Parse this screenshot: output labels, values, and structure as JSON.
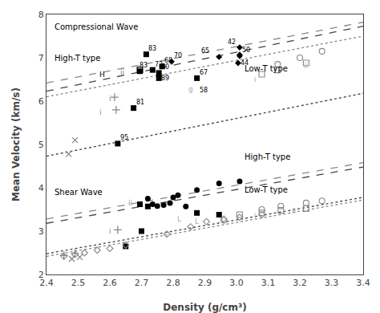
{
  "chart_data": {
    "type": "scatter",
    "xlabel": "Density (g/cm³)",
    "ylabel": "Mean Velocity (km/s)",
    "xlim": [
      2.4,
      3.4
    ],
    "ylim": [
      2.0,
      8.0
    ],
    "xticks": [
      2.4,
      2.5,
      2.6,
      2.7,
      2.8,
      2.9,
      {
        "value": 3.0,
        "label": "3.0"
      },
      3.1,
      3.2,
      3.3,
      3.4
    ],
    "yticks": [
      2,
      3,
      4,
      5,
      6,
      7,
      8
    ],
    "grid": false,
    "series": [
      {
        "type": "line",
        "color": "#444444",
        "line_style": "dashed",
        "x": [
          2.4,
          3.4
        ],
        "y": [
          6.23,
          7.73
        ]
      },
      {
        "type": "line",
        "color": "#444444",
        "line_style": "dotted",
        "x": [
          2.4,
          3.4
        ],
        "y": [
          4.73,
          6.18
        ]
      },
      {
        "type": "line",
        "color": "#888888",
        "line_style": "dashed",
        "x": [
          2.4,
          3.4
        ],
        "y": [
          6.42,
          7.82
        ]
      },
      {
        "type": "line",
        "color": "#888888",
        "line_style": "dotted",
        "x": [
          2.4,
          3.4
        ],
        "y": [
          6.1,
          7.5
        ]
      },
      {
        "type": "line",
        "color": "#444444",
        "line_style": "dashed",
        "x": [
          2.4,
          3.4
        ],
        "y": [
          3.18,
          4.48
        ]
      },
      {
        "type": "line",
        "color": "#444444",
        "line_style": "dotted",
        "x": [
          2.4,
          3.4
        ],
        "y": [
          2.48,
          3.78
        ]
      },
      {
        "type": "line",
        "color": "#888888",
        "line_style": "dashed",
        "x": [
          2.4,
          3.4
        ],
        "y": [
          3.28,
          4.58
        ]
      },
      {
        "type": "line",
        "color": "#888888",
        "line_style": "dotted",
        "x": [
          2.4,
          3.4
        ],
        "y": [
          2.42,
          3.72
        ]
      },
      {
        "type": "scatter",
        "marker": "square",
        "color": "black",
        "x": [
          2.715,
          2.735,
          2.755,
          2.755,
          2.675,
          2.625,
          2.875
        ],
        "y": [
          7.08,
          6.72,
          6.65,
          6.53,
          5.84,
          5.02,
          6.53
        ]
      },
      {
        "type": "scatter",
        "marker": "square",
        "color": "black",
        "x": [
          2.765,
          2.695
        ],
        "y": [
          6.8,
          6.69
        ]
      },
      {
        "type": "scatter",
        "marker": "square-open",
        "color": "black",
        "x": [
          2.695
        ],
        "y": [
          6.72
        ]
      },
      {
        "type": "scatter",
        "marker": "diamond",
        "color": "black",
        "x": [
          2.795,
          2.945,
          3.01
        ],
        "y": [
          6.91,
          7.02,
          7.07
        ]
      },
      {
        "type": "scatter",
        "marker": "diamond",
        "color": "black",
        "x": [
          3.01
        ],
        "y": [
          7.24
        ]
      },
      {
        "type": "scatter",
        "marker": "circle-open",
        "color": "#888888",
        "x": [
          3.13,
          3.2,
          3.27
        ],
        "y": [
          6.85,
          7.0,
          7.15
        ]
      },
      {
        "type": "scatter",
        "marker": "square-open",
        "color": "#888888",
        "x": [
          3.08,
          3.13,
          3.22
        ],
        "y": [
          6.62,
          6.72,
          6.88
        ]
      },
      {
        "type": "scatter",
        "marker": "diamond",
        "color": "black",
        "x": [
          3.005,
          3.01
        ],
        "y": [
          6.88,
          7.04
        ]
      },
      {
        "type": "scatter",
        "marker": "cross-thin",
        "color": "#888888",
        "x": [
          2.615,
          2.62
        ],
        "y": [
          6.09,
          5.8
        ]
      },
      {
        "type": "scatter",
        "marker": "x-thin",
        "color": "#888888",
        "x": [
          2.49,
          2.47
        ],
        "y": [
          5.1,
          4.78
        ]
      },
      {
        "type": "scatter",
        "marker": "circle",
        "color": "black",
        "x": [
          2.72,
          2.735,
          2.75,
          2.77,
          2.79,
          2.8,
          2.815,
          2.84,
          2.875,
          2.945,
          3.01
        ],
        "y": [
          3.75,
          3.62,
          3.58,
          3.6,
          3.65,
          3.78,
          3.83,
          3.57,
          3.95,
          4.1,
          4.15
        ]
      },
      {
        "type": "scatter",
        "marker": "square",
        "color": "black",
        "x": [
          2.72,
          2.695
        ],
        "y": [
          3.57,
          3.62
        ]
      },
      {
        "type": "scatter",
        "marker": "circle-open",
        "color": "#888888",
        "x": [
          2.96,
          3.08,
          3.14,
          3.22,
          3.27
        ],
        "y": [
          3.25,
          3.5,
          3.58,
          3.65,
          3.7
        ]
      },
      {
        "type": "scatter",
        "marker": "square-open",
        "color": "#888888",
        "x": [
          3.01,
          3.08,
          3.14,
          3.22
        ],
        "y": [
          3.38,
          3.42,
          3.48,
          3.52
        ]
      },
      {
        "type": "scatter",
        "marker": "square",
        "color": "black",
        "x": [
          2.65,
          2.7
        ],
        "y": [
          2.65,
          3.0
        ]
      },
      {
        "type": "scatter",
        "marker": "square",
        "color": "black",
        "x": [
          2.875,
          2.945
        ],
        "y": [
          3.42,
          3.38
        ]
      },
      {
        "type": "scatter",
        "marker": "diamond-open",
        "color": "#888888",
        "x": [
          2.455,
          2.49,
          2.52,
          2.56,
          2.6,
          2.65,
          2.78,
          2.855,
          2.905,
          2.96,
          3.01,
          3.08
        ],
        "y": [
          2.42,
          2.46,
          2.5,
          2.56,
          2.6,
          2.68,
          2.93,
          3.1,
          3.22,
          3.28,
          3.32,
          3.38
        ]
      },
      {
        "type": "scatter",
        "marker": "x-thin",
        "color": "#888888",
        "x": [
          2.48,
          2.505
        ],
        "y": [
          2.36,
          2.4
        ]
      },
      {
        "type": "scatter",
        "marker": "cross-thin",
        "color": "#888888",
        "x": [
          2.455,
          2.49
        ],
        "y": [
          2.44,
          2.49
        ]
      },
      {
        "type": "scatter",
        "marker": "cross-thin",
        "color": "#888888",
        "x": [
          2.625
        ],
        "y": [
          3.03
        ]
      }
    ],
    "annotations": [
      {
        "x": 2.575,
        "y": 6.62,
        "text": "H",
        "color": "black"
      },
      {
        "x": 2.64,
        "y": 6.66,
        "text": "ii",
        "color": "#888888"
      },
      {
        "x": 2.6,
        "y": 6.06,
        "text": "i",
        "color": "#888888"
      },
      {
        "x": 2.57,
        "y": 5.75,
        "text": "i",
        "color": "#888888"
      },
      {
        "x": 2.855,
        "y": 6.28,
        "text": "g",
        "color": "#aaaaaa"
      },
      {
        "x": 3.06,
        "y": 6.5,
        "text": "i",
        "color": "#aaaaaa"
      },
      {
        "x": 3.22,
        "y": 6.82,
        "text": "ii",
        "color": "#aaaaaa"
      },
      {
        "x": 2.6,
        "y": 3.0,
        "text": "i",
        "color": "#888888"
      },
      {
        "x": 2.665,
        "y": 3.65,
        "text": "ii",
        "color": "#888888"
      },
      {
        "x": 3.06,
        "y": 3.36,
        "text": "i",
        "color": "#aaaaaa"
      },
      {
        "x": 3.18,
        "y": 3.46,
        "text": "ii",
        "color": "#aaaaaa"
      },
      {
        "x": 2.82,
        "y": 3.27,
        "text": "L",
        "color": "#aaaaaa"
      },
      {
        "x": 2.875,
        "y": 3.22,
        "text": "L",
        "color": "#aaaaaa"
      }
    ],
    "text_labels": [
      {
        "x": 2.42,
        "y": 7.72,
        "text": "Compressional Wave",
        "color": "black"
      },
      {
        "x": 2.42,
        "y": 7.0,
        "text": "High-T type",
        "color": "black"
      },
      {
        "x": 3.02,
        "y": 6.75,
        "text": "Low-T type",
        "color": "black"
      },
      {
        "x": 2.42,
        "y": 3.9,
        "text": "Shear Wave",
        "color": "black"
      },
      {
        "x": 3.02,
        "y": 4.72,
        "text": "High-T type",
        "color": "black"
      },
      {
        "x": 3.02,
        "y": 3.95,
        "text": "Low-T type",
        "color": "black"
      }
    ],
    "point_labels": [
      {
        "x": 2.72,
        "y": 7.11,
        "text": "83",
        "color": "black"
      },
      {
        "x": 2.69,
        "y": 6.72,
        "text": "83",
        "color": "black"
      },
      {
        "x": 2.74,
        "y": 6.75,
        "text": "72",
        "color": "black"
      },
      {
        "x": 2.77,
        "y": 6.83,
        "text": "68",
        "color": "black"
      },
      {
        "x": 2.8,
        "y": 6.94,
        "text": "70",
        "color": "black"
      },
      {
        "x": 2.76,
        "y": 6.68,
        "text": "80",
        "color": "black"
      },
      {
        "x": 2.76,
        "y": 6.43,
        "text": "89",
        "color": "black"
      },
      {
        "x": 2.88,
        "y": 6.56,
        "text": "67",
        "color": "black"
      },
      {
        "x": 2.88,
        "y": 6.15,
        "text": "58",
        "color": "black"
      },
      {
        "x": 2.68,
        "y": 5.87,
        "text": "81",
        "color": "black"
      },
      {
        "x": 2.63,
        "y": 5.05,
        "text": "95",
        "color": "black"
      },
      {
        "x": 2.885,
        "y": 7.05,
        "text": "65",
        "color": "black"
      },
      {
        "x": 3.015,
        "y": 7.08,
        "text": "50",
        "color": "black"
      },
      {
        "x": 3.01,
        "y": 6.78,
        "text": "44",
        "color": "black"
      },
      {
        "x": 2.97,
        "y": 7.26,
        "text": "42",
        "color": "black"
      }
    ]
  }
}
